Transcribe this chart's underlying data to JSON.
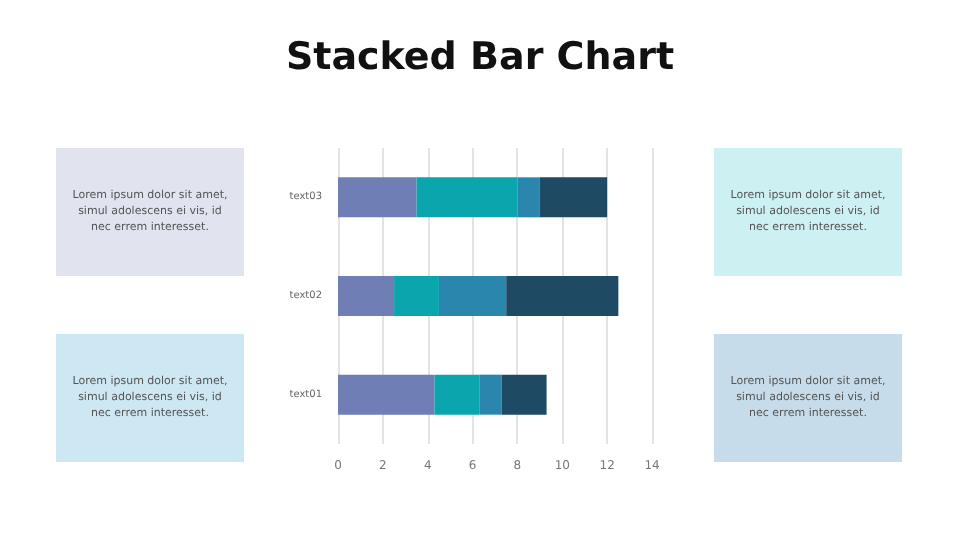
{
  "chart_data": {
    "type": "bar",
    "title": "Stacked Bar Chart",
    "orientation": "horizontal",
    "stacked": true,
    "categories": [
      "text03",
      "text02",
      "text01"
    ],
    "series": [
      {
        "color": "#6f7fb5",
        "values": [
          3.5,
          2.5,
          4.3
        ]
      },
      {
        "color": "#0aa5ad",
        "values": [
          4.5,
          2,
          2
        ]
      },
      {
        "color": "#2a86ad",
        "values": [
          1,
          3,
          1
        ]
      },
      {
        "color": "#1f4a63",
        "values": [
          3,
          5,
          2
        ]
      }
    ],
    "xlim": [
      0,
      14
    ],
    "xticks": [
      0,
      2,
      4,
      6,
      8,
      10,
      12,
      14
    ],
    "grid": "x",
    "annotations": [
      "Lorem ipsum dolor sit amet, simul adolescens ei vis, id nec errem interesset.",
      "Lorem ipsum dolor sit amet, simul adolescens ei vis, id nec errem interesset.",
      "Lorem ipsum dolor sit amet, simul adolescens ei vis, id nec errem interesset.",
      "Lorem ipsum dolor sit amet, simul adolescens ei vis, id nec errem interesset."
    ]
  }
}
